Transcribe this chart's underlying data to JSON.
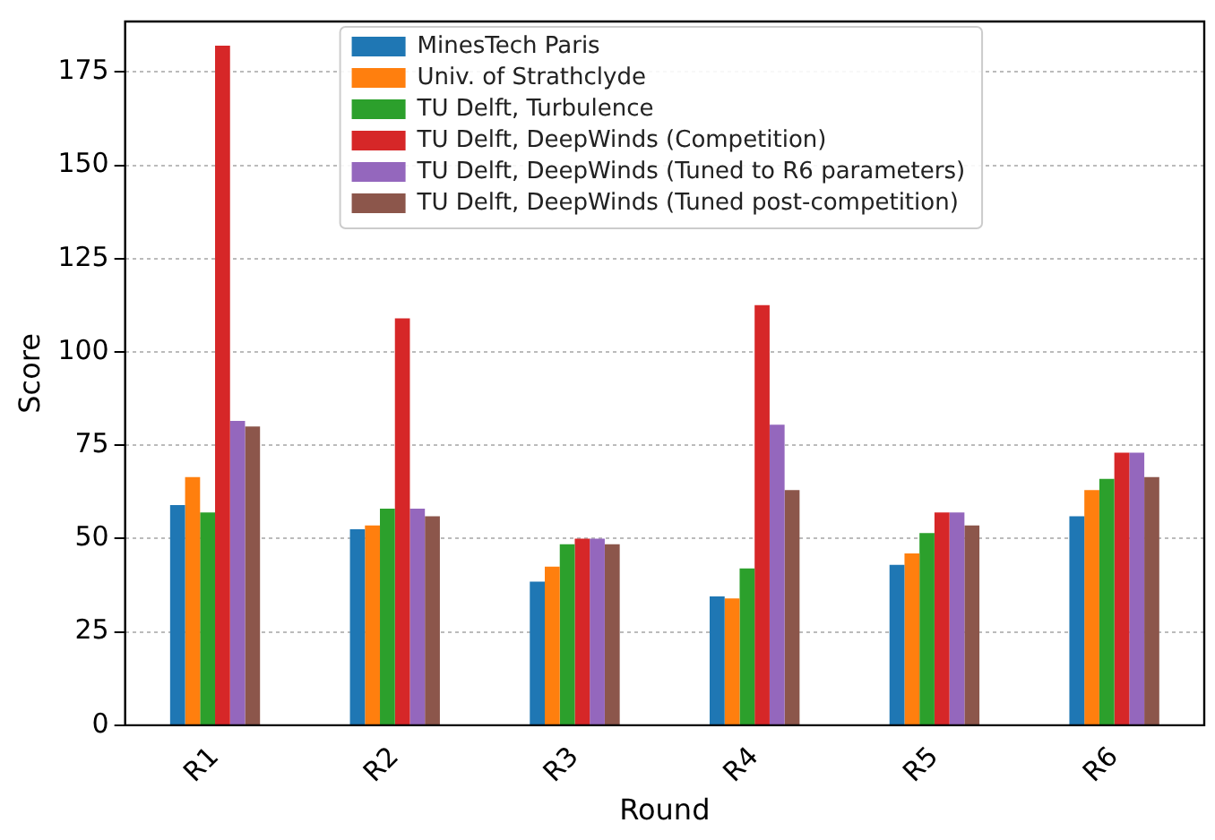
{
  "chart_data": {
    "type": "bar",
    "xlabel": "Round",
    "ylabel": "Score",
    "categories": [
      "R1",
      "R2",
      "R3",
      "R4",
      "R5",
      "R6"
    ],
    "series": [
      {
        "name": "MinesTech Paris",
        "color": "#1f77b4",
        "values": [
          59,
          52.5,
          38.5,
          34.5,
          43,
          56
        ]
      },
      {
        "name": "Univ. of Strathclyde",
        "color": "#ff7f0e",
        "values": [
          66.5,
          53.5,
          42.5,
          34,
          46,
          63
        ]
      },
      {
        "name": "TU Delft, Turbulence",
        "color": "#2ca02c",
        "values": [
          57,
          58,
          48.5,
          42,
          51.5,
          66
        ]
      },
      {
        "name": "TU Delft, DeepWinds (Competition)",
        "color": "#d62728",
        "values": [
          182,
          109,
          50,
          112.5,
          57,
          73
        ]
      },
      {
        "name": "TU Delft, DeepWinds (Tuned to R6 parameters)",
        "color": "#9467bd",
        "values": [
          81.5,
          58,
          50,
          80.5,
          57,
          73
        ]
      },
      {
        "name": "TU Delft, DeepWinds (Tuned post-competition)",
        "color": "#8c564b",
        "values": [
          80,
          56,
          48.5,
          63,
          53.5,
          66.5
        ]
      }
    ],
    "ylim": [
      0,
      188.5
    ],
    "yticks": [
      0,
      25,
      50,
      75,
      100,
      125,
      150,
      175
    ],
    "grid": "y",
    "legend": "top"
  }
}
